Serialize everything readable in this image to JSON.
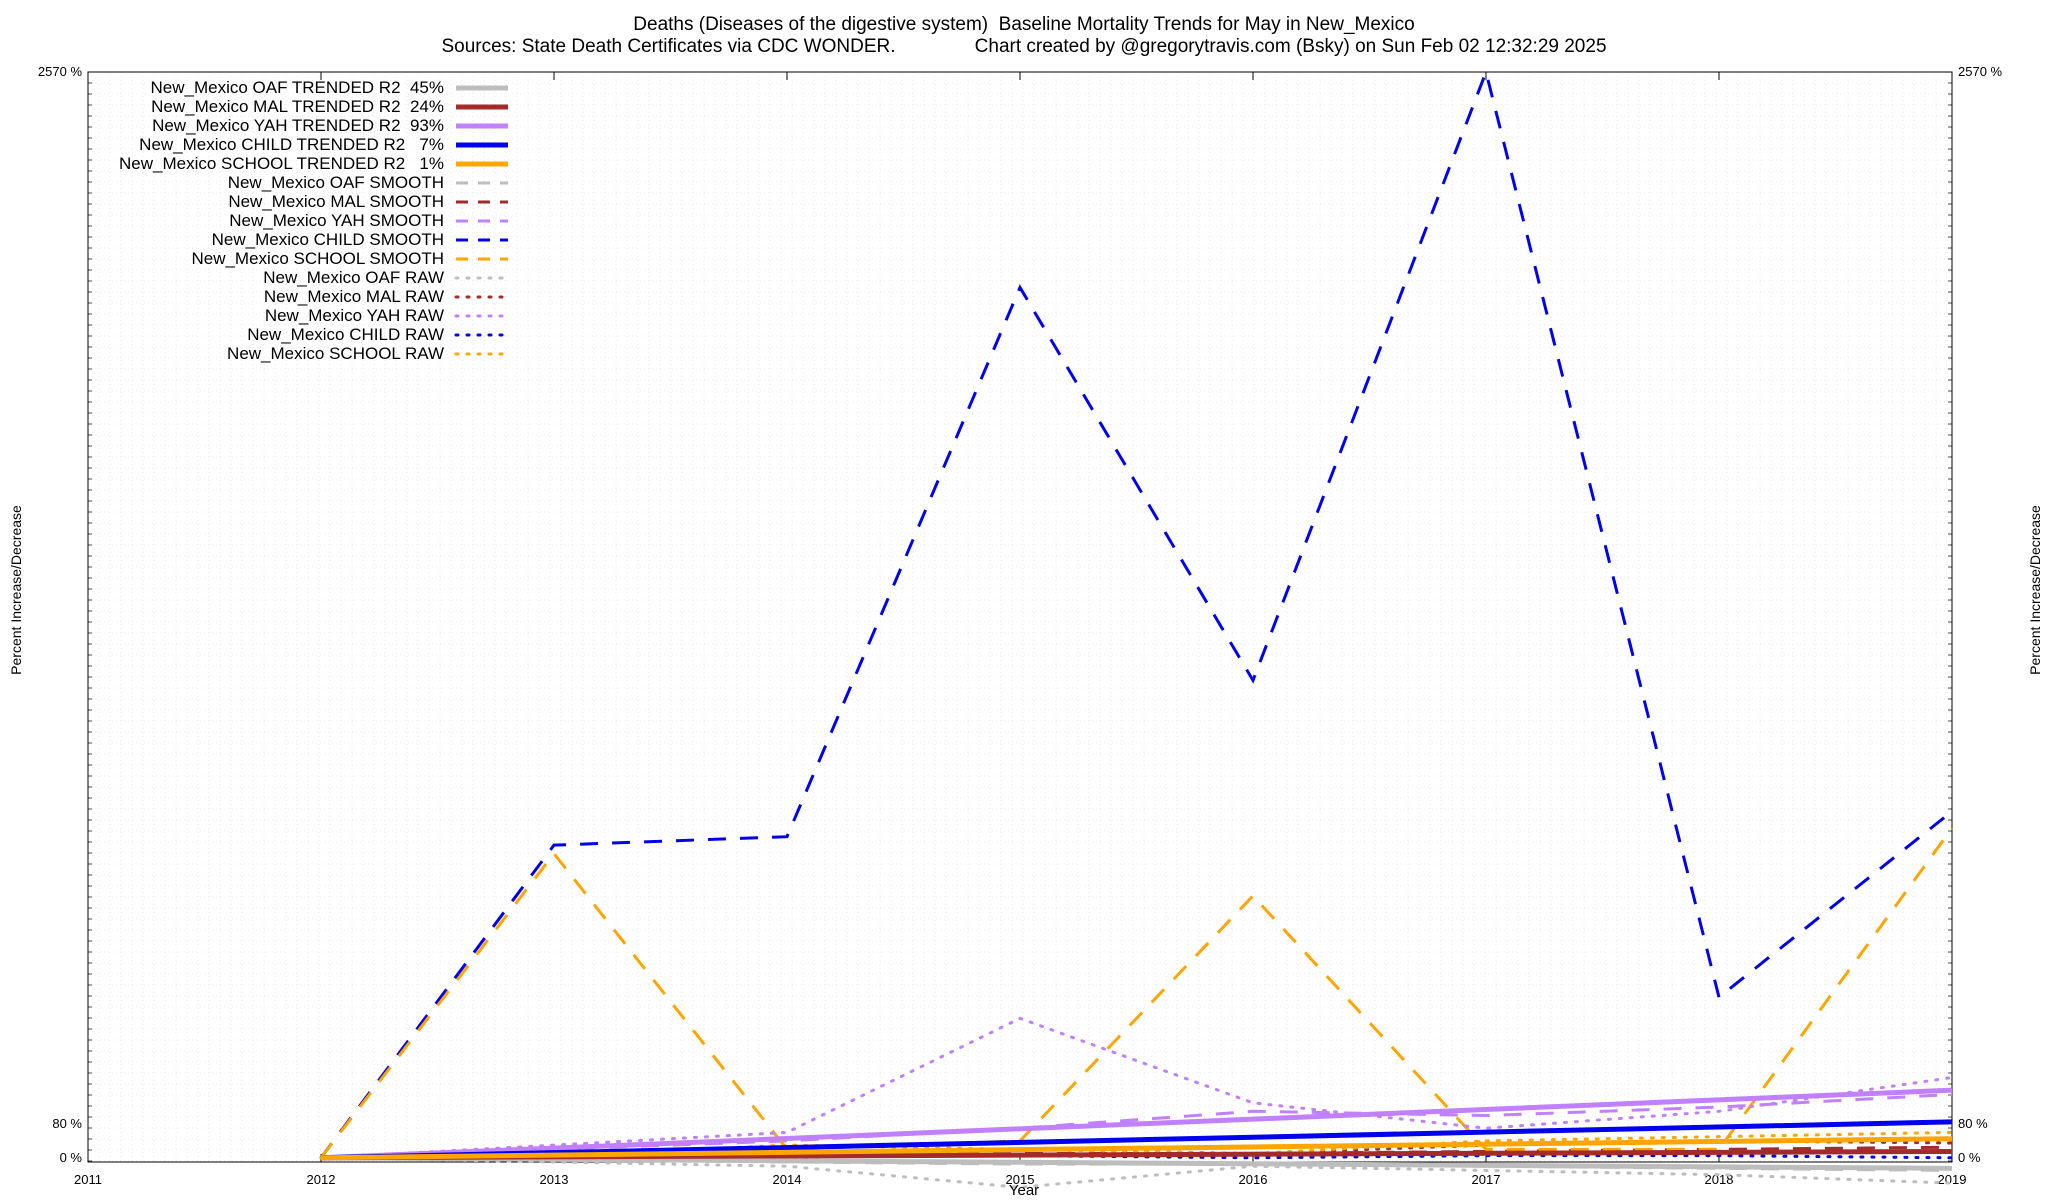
{
  "title_line1": "Deaths (Diseases of the digestive system)  Baseline Mortality Trends for May in New_Mexico",
  "title_line2": "Sources: State Death Certificates via CDC WONDER.               Chart created by @gregorytravis.com (Bsky) on Sun Feb 02 12:32:29 2025",
  "chart_data": {
    "type": "line",
    "title": "Deaths (Diseases of the digestive system)  Baseline Mortality Trends for May in New_Mexico",
    "subtitle": "Sources: State Death Certificates via CDC WONDER.               Chart created by @gregorytravis.com (Bsky) on Sun Feb 02 12:32:29 2025",
    "xlabel": "Year",
    "ylabel": "Percent Increase/Decrease",
    "xlim": [
      2011,
      2019
    ],
    "ylim": [
      -10,
      2570
    ],
    "x_ticks": [
      "2011",
      "2012",
      "2013",
      "2014",
      "2015",
      "2016",
      "2017",
      "2018",
      "2019"
    ],
    "y_tick_labels": [
      "2570 %",
      "80 %",
      "0 %"
    ],
    "grid": true,
    "legend_position": "top-left",
    "colors": {
      "OAF": "#bdbdbd",
      "MAL": "#a52a2a",
      "YAH": "#c080ff",
      "CHILD": "#0000ee",
      "SCHOOL": "#ffa500"
    },
    "series": [
      {
        "name": "New_Mexico OAF TRENDED R2  45%",
        "group": "OAF",
        "style": "trend",
        "x": [
          2012,
          2019
        ],
        "y": [
          0,
          -25
        ]
      },
      {
        "name": "New_Mexico MAL TRENDED R2  24%",
        "group": "MAL",
        "style": "trend",
        "x": [
          2012,
          2019
        ],
        "y": [
          0,
          15
        ]
      },
      {
        "name": "New_Mexico YAH TRENDED R2  93%",
        "group": "YAH",
        "style": "trend",
        "x": [
          2012,
          2019
        ],
        "y": [
          0,
          160
        ]
      },
      {
        "name": "New_Mexico CHILD TRENDED R2   7%",
        "group": "CHILD",
        "style": "trend",
        "x": [
          2012,
          2019
        ],
        "y": [
          0,
          85
        ]
      },
      {
        "name": "New_Mexico SCHOOL TRENDED R2   1%",
        "group": "SCHOOL",
        "style": "trend",
        "x": [
          2012,
          2019
        ],
        "y": [
          0,
          45
        ]
      },
      {
        "name": "New_Mexico OAF SMOOTH",
        "group": "OAF",
        "style": "smooth",
        "x": [
          2012,
          2013,
          2014,
          2015,
          2016,
          2017,
          2018,
          2019
        ],
        "y": [
          0,
          -5,
          -10,
          -15,
          -15,
          -20,
          -25,
          -30
        ]
      },
      {
        "name": "New_Mexico MAL SMOOTH",
        "group": "MAL",
        "style": "smooth",
        "x": [
          2012,
          2013,
          2014,
          2015,
          2016,
          2017,
          2018,
          2019
        ],
        "y": [
          0,
          5,
          5,
          10,
          10,
          15,
          20,
          25
        ]
      },
      {
        "name": "New_Mexico YAH SMOOTH",
        "group": "YAH",
        "style": "smooth",
        "x": [
          2012,
          2013,
          2014,
          2015,
          2016,
          2017,
          2018,
          2019
        ],
        "y": [
          0,
          20,
          40,
          70,
          110,
          100,
          120,
          150
        ]
      },
      {
        "name": "New_Mexico CHILD SMOOTH",
        "group": "CHILD",
        "style": "smooth",
        "x": [
          2012,
          2013,
          2014,
          2015,
          2016,
          2017,
          2018,
          2019
        ],
        "y": [
          0,
          740,
          760,
          2060,
          1130,
          2570,
          380,
          820
        ]
      },
      {
        "name": "New_Mexico SCHOOL SMOOTH",
        "group": "SCHOOL",
        "style": "smooth",
        "x": [
          2012,
          2013,
          2014,
          2015,
          2016,
          2017,
          2018,
          2019
        ],
        "y": [
          0,
          720,
          20,
          40,
          620,
          20,
          20,
          780
        ]
      },
      {
        "name": "New_Mexico OAF RAW",
        "group": "OAF",
        "style": "raw",
        "x": [
          2012,
          2013,
          2014,
          2015,
          2016,
          2017,
          2018,
          2019
        ],
        "y": [
          0,
          -10,
          -20,
          -70,
          -20,
          -30,
          -40,
          -60
        ]
      },
      {
        "name": "New_Mexico MAL RAW",
        "group": "MAL",
        "style": "raw",
        "x": [
          2012,
          2013,
          2014,
          2015,
          2016,
          2017,
          2018,
          2019
        ],
        "y": [
          0,
          10,
          0,
          20,
          10,
          30,
          40,
          35
        ]
      },
      {
        "name": "New_Mexico YAH RAW",
        "group": "YAH",
        "style": "raw",
        "x": [
          2012,
          2013,
          2014,
          2015,
          2016,
          2017,
          2018,
          2019
        ],
        "y": [
          0,
          30,
          60,
          330,
          130,
          70,
          110,
          190
        ]
      },
      {
        "name": "New_Mexico CHILD RAW",
        "group": "CHILD",
        "style": "raw",
        "x": [
          2012,
          2013,
          2014,
          2015,
          2016,
          2017,
          2018,
          2019
        ],
        "y": [
          0,
          5,
          10,
          5,
          0,
          5,
          5,
          0
        ]
      },
      {
        "name": "New_Mexico SCHOOL RAW",
        "group": "SCHOOL",
        "style": "raw",
        "x": [
          2012,
          2013,
          2014,
          2015,
          2016,
          2017,
          2018,
          2019
        ],
        "y": [
          0,
          5,
          30,
          20,
          10,
          40,
          50,
          60
        ]
      }
    ]
  }
}
